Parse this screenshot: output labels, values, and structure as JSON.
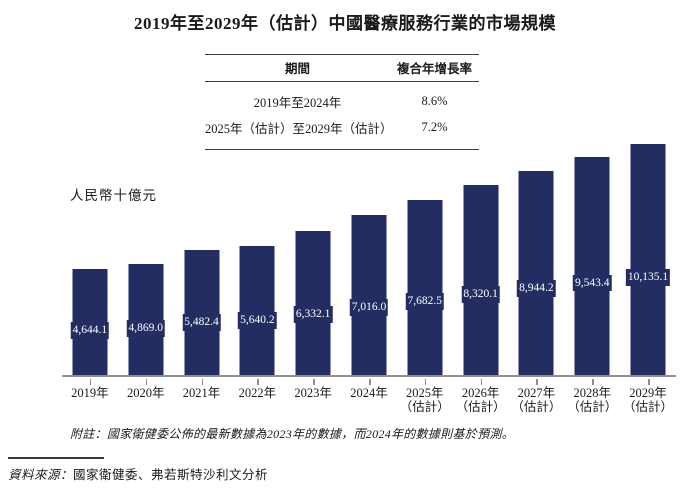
{
  "title": "2019年至2029年（估計）中國醫療服務行業的市場規模",
  "cagr_table": {
    "headers": [
      "期間",
      "複合年增長率"
    ],
    "rows": [
      {
        "period": "2019年至2024年",
        "cagr": "8.6%"
      },
      {
        "period": "2025年（估計）至2029年（估計）",
        "cagr": "7.2%"
      }
    ]
  },
  "chart_data": {
    "type": "bar",
    "title": "2019年至2029年（估計）中國醫療服務行業的市場規模",
    "ylabel": "人民幣十億元",
    "xlabel": "",
    "categories": [
      "2019年",
      "2020年",
      "2021年",
      "2022年",
      "2023年",
      "2024年",
      "2025年\n（估計）",
      "2026年\n（估計）",
      "2027年\n（估計）",
      "2028年\n（估計）",
      "2029年\n（估計）"
    ],
    "values": [
      4644.1,
      4869.0,
      5482.4,
      5640.2,
      6332.1,
      7016.0,
      7682.5,
      8320.1,
      8944.2,
      9543.4,
      10135.1
    ],
    "value_labels": [
      "4,644.1",
      "4,869.0",
      "5,482.4",
      "5,640.2",
      "6,332.1",
      "7,016.0",
      "7,682.5",
      "8,320.1",
      "8,944.2",
      "9,543.4",
      "10,135.1"
    ],
    "ylim": [
      0,
      10500
    ],
    "grid": false,
    "legend": "none",
    "bar_color": "#232d62",
    "value_label_color": "#ffffff",
    "axis_color": "#8f8f8f"
  },
  "footnote": "附註：國家衛健委公佈的最新數據為2023年的數據，而2024年的數據則基於預測。",
  "source": {
    "prefix": "資料來源：",
    "body": "國家衛健委、弗若斯特沙利文分析"
  }
}
